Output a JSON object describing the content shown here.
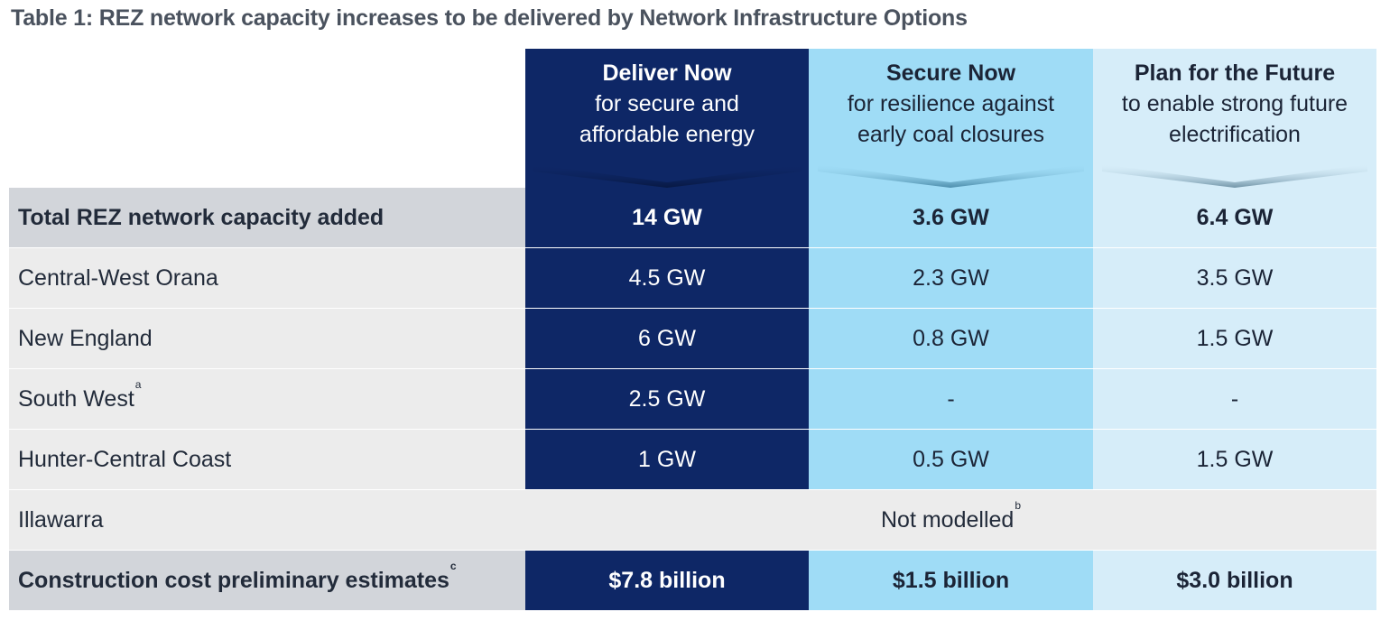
{
  "title": "Table 1: REZ network capacity increases to be delivered by Network Infrastructure Options",
  "columns": [
    {
      "heading": "Deliver Now",
      "sub1": "for secure and",
      "sub2": "affordable energy",
      "color": "#0e2766"
    },
    {
      "heading": "Secure Now",
      "sub1": "for resilience against",
      "sub2": "early coal closures",
      "color": "#9fdcf6"
    },
    {
      "heading": "Plan for the Future",
      "sub1": "to enable strong future",
      "sub2": "electrification",
      "color": "#d6edf9"
    }
  ],
  "rows": {
    "total": {
      "label": "Total REZ network capacity added",
      "values": [
        "14 GW",
        "3.6 GW",
        "6.4 GW"
      ]
    },
    "central_west": {
      "label": "Central-West Orana",
      "values": [
        "4.5 GW",
        "2.3 GW",
        "3.5 GW"
      ]
    },
    "new_england": {
      "label": "New England",
      "values": [
        "6 GW",
        "0.8 GW",
        "1.5 GW"
      ]
    },
    "south_west": {
      "label": "South West",
      "footnote": "a",
      "values": [
        "2.5 GW",
        "-",
        "-"
      ]
    },
    "hunter": {
      "label": "Hunter-Central Coast",
      "values": [
        "1 GW",
        "0.5 GW",
        "1.5 GW"
      ]
    },
    "illawarra": {
      "label": "Illawarra",
      "span_value": "Not modelled",
      "footnote": "b"
    },
    "cost": {
      "label": "Construction cost preliminary estimates",
      "footnote": "c",
      "values": [
        "$7.8 billion",
        "$1.5 billion",
        "$3.0 billion"
      ]
    }
  }
}
